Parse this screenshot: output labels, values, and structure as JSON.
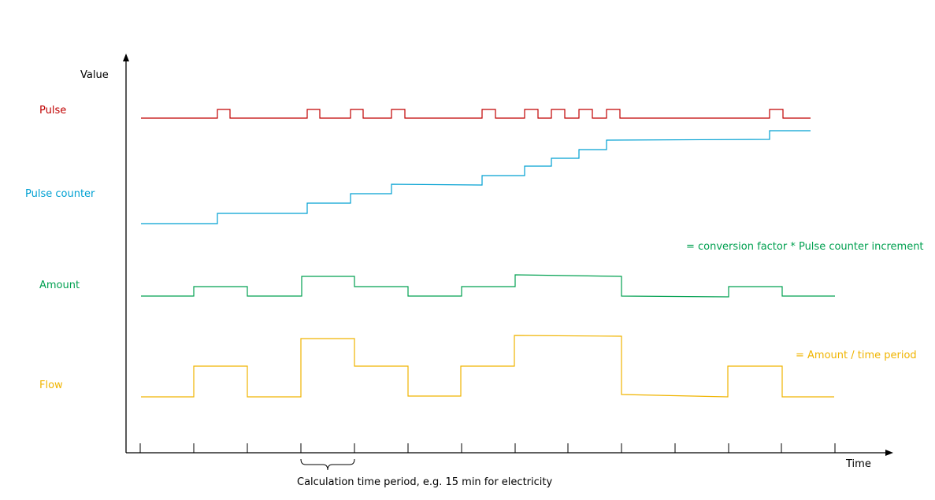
{
  "axes": {
    "y_label": "Value",
    "x_label": "Time"
  },
  "signals": [
    {
      "key": "pulse",
      "label": "Pulse",
      "color": "#c00000"
    },
    {
      "key": "pulse_counter",
      "label": "Pulse counter",
      "color": "#00a0d2"
    },
    {
      "key": "amount",
      "label": "Amount",
      "color": "#00a050"
    },
    {
      "key": "flow",
      "label": "Flow",
      "color": "#f0b400"
    }
  ],
  "notes": {
    "amount_formula": "= conversion factor * Pulse counter increment",
    "flow_formula": "= Amount / time period",
    "calculation_period": "Calculation time period, e.g. 15 min for electricity"
  }
}
